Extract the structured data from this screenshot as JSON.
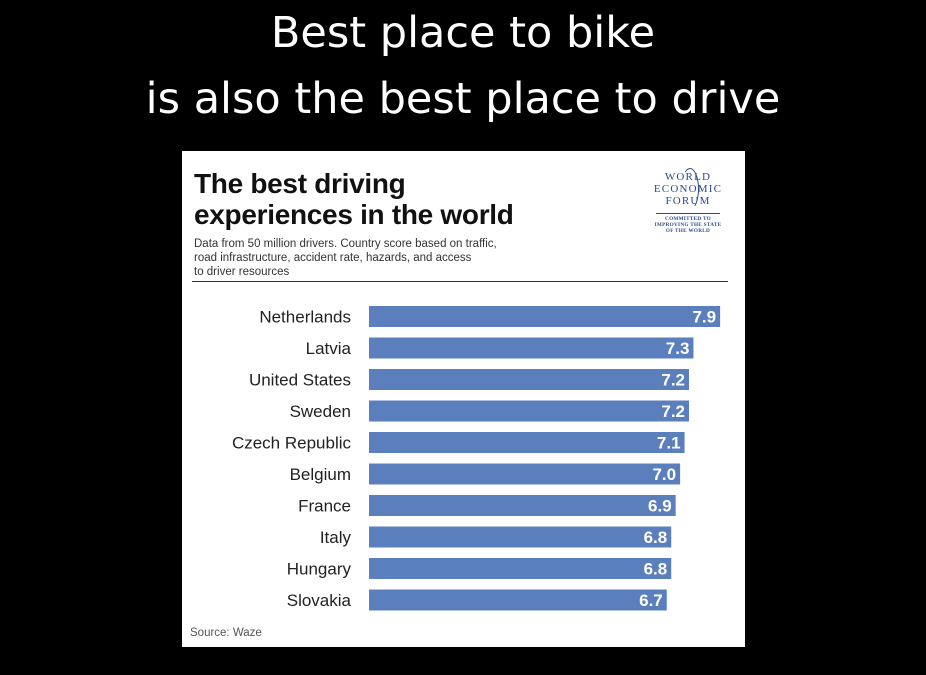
{
  "slide": {
    "title_line1": "Best place to bike",
    "title_line2": "is also the best place to drive"
  },
  "logo": {
    "line1": "WORLD",
    "line2": "ECONOMIC",
    "line3": "FORUM",
    "tagline1": "COMMITTED TO",
    "tagline2": "IMPROVING THE STATE",
    "tagline3": "OF THE WORLD",
    "color": "#2b4a8a"
  },
  "chart_data": {
    "type": "bar",
    "orientation": "horizontal",
    "title_line1": "The best driving",
    "title_line2": "experiences in the world",
    "subtitle_line1": "Data from 50 million drivers. Country score based on traffic,",
    "subtitle_line2": "road infrastructure, accident rate, hazards, and access",
    "subtitle_line3": "to driver resources",
    "categories": [
      "Netherlands",
      "Latvia",
      "United States",
      "Sweden",
      "Czech Republic",
      "Belgium",
      "France",
      "Italy",
      "Hungary",
      "Slovakia"
    ],
    "values": [
      7.9,
      7.3,
      7.2,
      7.2,
      7.1,
      7.0,
      6.9,
      6.8,
      6.8,
      6.7
    ],
    "value_labels": [
      "7.9",
      "7.3",
      "7.2",
      "7.2",
      "7.1",
      "7.0",
      "6.9",
      "6.8",
      "6.8",
      "6.7"
    ],
    "xlim": [
      0,
      8.1
    ],
    "bar_color": "#5b7fbd",
    "grid": false,
    "source": "Source: Waze"
  }
}
